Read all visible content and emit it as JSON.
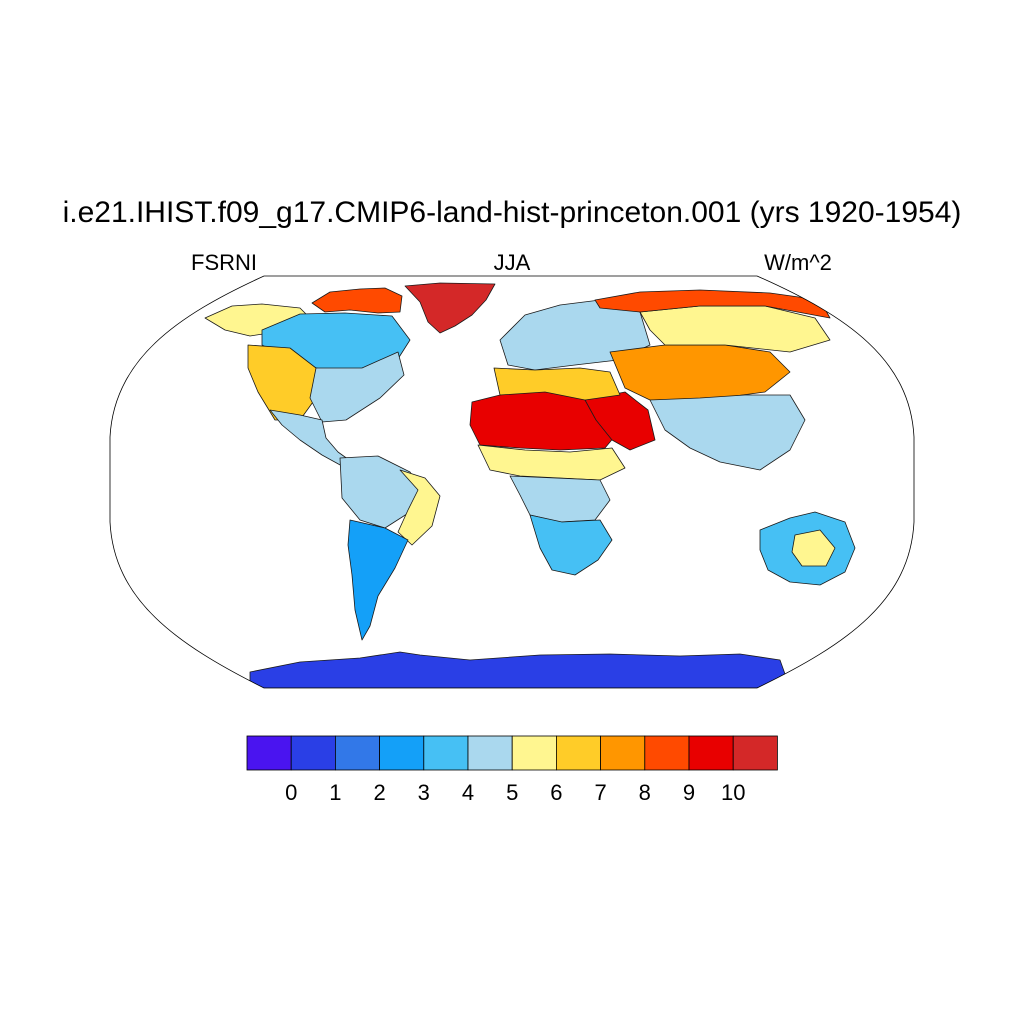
{
  "title": "i.e21.IHIST.f09_g17.CMIP6-land-hist-princeton.001 (yrs 1920-1954)",
  "left_label": "FSRNI",
  "center_label": "JJA",
  "right_label": "W/m^2",
  "map": {
    "projection": "robinson",
    "ocean_color": "#ffffff",
    "coast_color": "#000000"
  },
  "colorbar": {
    "colors": [
      "#4a14f0",
      "#2a3fe6",
      "#3278e8",
      "#14a0f8",
      "#46c0f4",
      "#aad8ee",
      "#fff690",
      "#ffcc28",
      "#ff9600",
      "#ff4a00",
      "#e80000",
      "#d42828"
    ],
    "tick_labels": [
      "0",
      "1",
      "2",
      "3",
      "4",
      "5",
      "6",
      "7",
      "8",
      "9",
      "10"
    ]
  },
  "regions": [
    {
      "name": "greenland",
      "value_bin": 11
    },
    {
      "name": "canada-arctic-coast",
      "value_bin": 9
    },
    {
      "name": "alaska",
      "value_bin": 6
    },
    {
      "name": "canada-interior",
      "value_bin": 4
    },
    {
      "name": "western-usa",
      "value_bin": 7
    },
    {
      "name": "eastern-usa",
      "value_bin": 5
    },
    {
      "name": "mexico-central-america",
      "value_bin": 5
    },
    {
      "name": "amazon",
      "value_bin": 5
    },
    {
      "name": "brazil-east",
      "value_bin": 6
    },
    {
      "name": "southern-south-america",
      "value_bin": 3
    },
    {
      "name": "sahara",
      "value_bin": 10
    },
    {
      "name": "arabia",
      "value_bin": 10
    },
    {
      "name": "sahel",
      "value_bin": 6
    },
    {
      "name": "central-africa",
      "value_bin": 5
    },
    {
      "name": "southern-africa",
      "value_bin": 4
    },
    {
      "name": "europe",
      "value_bin": 5
    },
    {
      "name": "mediterranean",
      "value_bin": 7
    },
    {
      "name": "central-asia",
      "value_bin": 8
    },
    {
      "name": "siberia",
      "value_bin": 6
    },
    {
      "name": "arctic-russia-coast",
      "value_bin": 9
    },
    {
      "name": "india-se-asia",
      "value_bin": 5
    },
    {
      "name": "australia",
      "value_bin": 4
    },
    {
      "name": "central-australia",
      "value_bin": 6
    },
    {
      "name": "antarctica",
      "value_bin": 1
    }
  ]
}
